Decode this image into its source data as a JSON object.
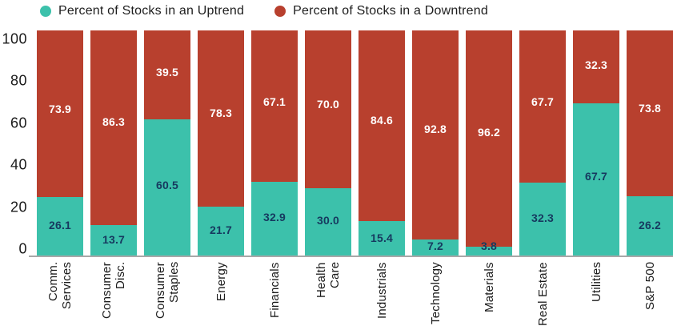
{
  "legend": {
    "items": [
      {
        "label": "Percent of Stocks in an Uptrend",
        "color": "#3cc1ab"
      },
      {
        "label": "Percent of Stocks in a Downtrend",
        "color": "#b8402e"
      }
    ]
  },
  "colors": {
    "uptrend": "#3cc1ab",
    "downtrend": "#b8402e",
    "uptrend_label_text": "#16395f",
    "downtrend_label_text": "#ffffff",
    "axis_line": "#a8a8a8",
    "text": "#1a1a1a"
  },
  "chart_data": {
    "type": "bar",
    "stacked": true,
    "title": "",
    "xlabel": "",
    "ylabel": "",
    "ylim": [
      0,
      100
    ],
    "yticks": [
      0,
      20,
      40,
      60,
      80,
      100
    ],
    "grid": false,
    "legend_position": "top",
    "categories": [
      "Comm.\nServices",
      "Consumer\nDisc.",
      "Consumer\nStaples",
      "Energy",
      "Financials",
      "Health\nCare",
      "Industrials",
      "Technology",
      "Materials",
      "Real Estate",
      "Utilities",
      "S&P 500"
    ],
    "series": [
      {
        "name": "Percent of Stocks in an Uptrend",
        "color": "#3cc1ab",
        "values": [
          26.1,
          13.7,
          60.5,
          21.7,
          32.9,
          30.0,
          15.4,
          7.2,
          3.8,
          32.3,
          67.7,
          26.2
        ]
      },
      {
        "name": "Percent of Stocks in a Downtrend",
        "color": "#b8402e",
        "values": [
          73.9,
          86.3,
          39.5,
          78.3,
          67.1,
          70.0,
          84.6,
          92.8,
          96.2,
          67.7,
          32.3,
          73.8
        ]
      }
    ]
  }
}
